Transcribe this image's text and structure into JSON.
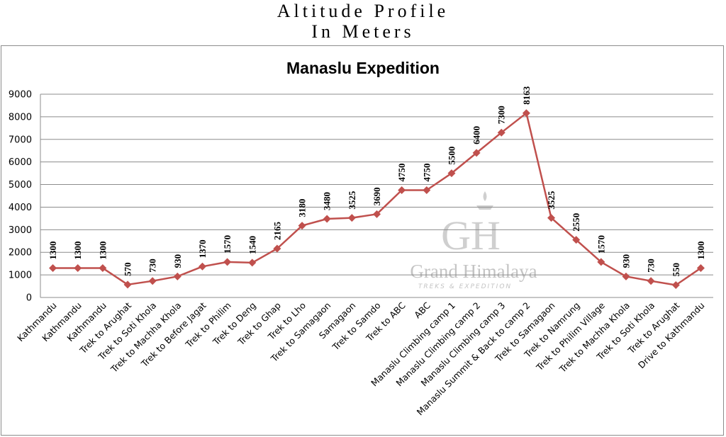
{
  "page_title": {
    "line1": "Altitude Profile",
    "line2": "In Meters"
  },
  "watermark": {
    "brand": "Grand Himalaya",
    "sub": "TREKS & EXPEDITION",
    "monogram": "GH"
  },
  "colors": {
    "series": "#c0504d",
    "grid": "#8c8c8c"
  },
  "chart_data": {
    "type": "line",
    "title": "Manaslu Expedition",
    "xlabel": "",
    "ylabel": "",
    "ylim": [
      0,
      9000
    ],
    "yticks": [
      0,
      1000,
      2000,
      3000,
      4000,
      5000,
      6000,
      7000,
      8000,
      9000
    ],
    "grid": true,
    "legend": "none",
    "marker": "diamond",
    "categories": [
      "Kathmandu",
      "Kathmandu",
      "Kathmandu",
      "Trek to Arughat",
      "Trek to Soti Khola",
      "Trek to Machha Khola",
      "Trek to Before Jagat",
      "Trek to Philim",
      "Trek to Deng",
      "Trek to Ghap",
      "Trek to Lho",
      "Trek to Samagaon",
      "Samagaon",
      "Trek to Samdo",
      "Trek to ABC",
      "ABC",
      "Manaslu Climbing camp 1",
      "Manaslu Climbing camp 2",
      "Manaslu Climbing camp 3",
      "Manaslu Summit & Back to camp 2",
      "Trek to Samagaon",
      "Trek to Namrung",
      "Trek to Philim Village",
      "Trek to Machha Khola",
      "Trek to Soti Khola",
      "Trek to Arughat",
      "Drive to Kathmandu"
    ],
    "series": [
      {
        "values": [
          1300,
          1300,
          1300,
          570,
          730,
          930,
          1370,
          1570,
          1540,
          2165,
          3180,
          3480,
          3525,
          3690,
          4750,
          4750,
          5500,
          6400,
          7300,
          8163,
          3525,
          2550,
          1570,
          930,
          730,
          550,
          1300
        ]
      }
    ]
  }
}
